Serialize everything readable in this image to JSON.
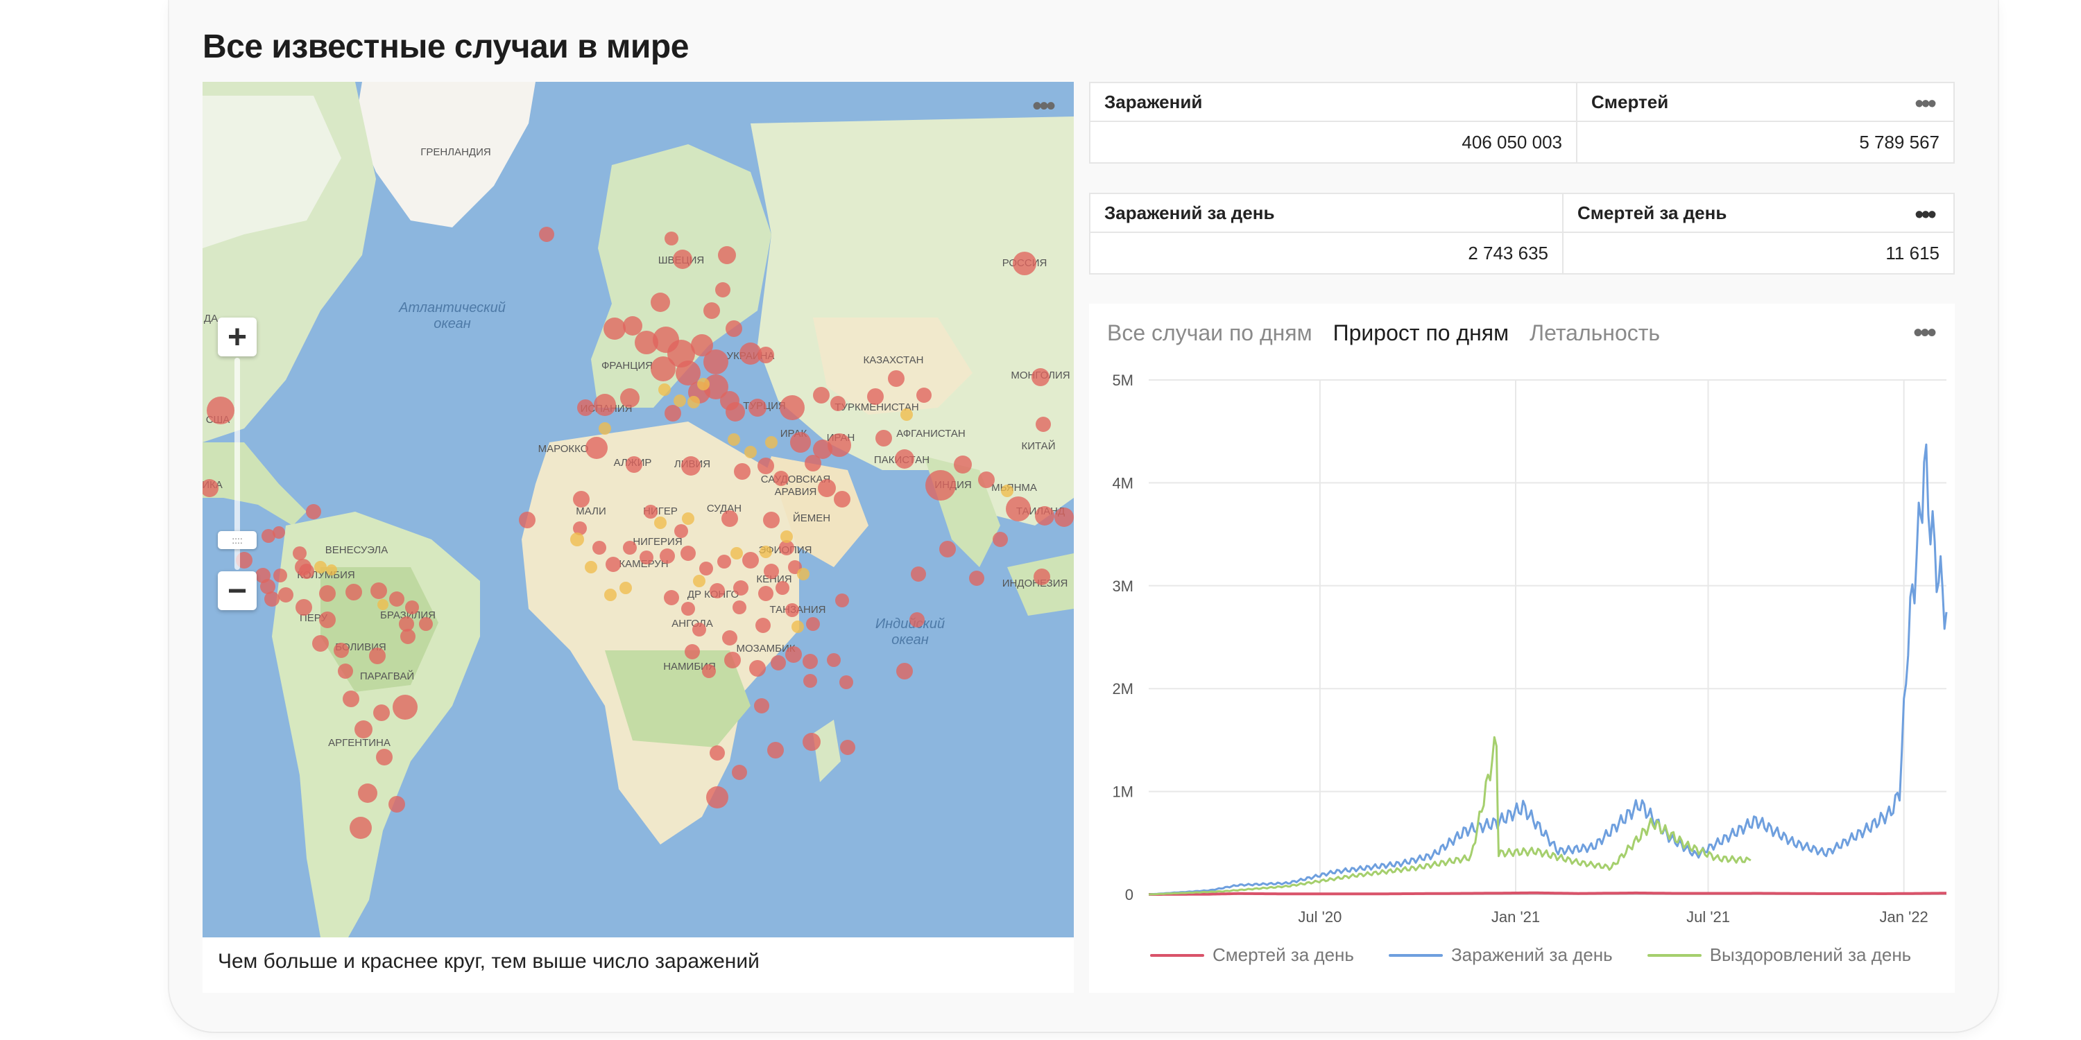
{
  "page": {
    "title": "Все известные случаи в мире"
  },
  "map": {
    "caption": "Чем больше и краснее круг, тем выше число заражений",
    "zoom_in": "+",
    "zoom_out": "−",
    "ocean_labels": [
      {
        "text": "Атлантический",
        "id": "atlantic-1"
      },
      {
        "text": "океан",
        "id": "atlantic-2"
      },
      {
        "text": "Индийский",
        "id": "indian-1"
      },
      {
        "text": "океан",
        "id": "indian-2"
      }
    ],
    "country_labels": [
      "ГРЕНЛАНДИЯ",
      "ШВЕЦИЯ",
      "РОССИЯ",
      "УКРАИНА",
      "ФРАНЦИЯ",
      "ИСПАНИЯ",
      "ТУРЦИЯ",
      "КАЗАХСТАН",
      "МОНГОЛИЯ",
      "ТУРКМЕНИСТАН",
      "АФГАНИСТАН",
      "КИТАЙ",
      "ИРАН",
      "ИРАК",
      "ПАКИСТАН",
      "ИНДИЯ",
      "МЬЯНМА",
      "ТАИЛАНД",
      "ИНДОНЕЗИЯ",
      "САУДОВСКАЯ",
      "АРАВИЯ",
      "ЙЕМЕН",
      "МАРОККО",
      "АЛЖИР",
      "ЛИВИЯ",
      "МАЛИ",
      "НИГЕР",
      "СУДАН",
      "ЭФИОПИЯ",
      "НИГЕРИЯ",
      "КАМЕРУН",
      "ДР КОНГО",
      "КЕНИЯ",
      "ТАНЗАНИЯ",
      "АНГОЛА",
      "МОЗАМБИК",
      "НАМИБИЯ",
      "ВЕНЕСУЭЛА",
      "КОЛУМБИЯ",
      "ПЕРУ",
      "БРАЗИЛИЯ",
      "БОЛИВИЯ",
      "ПАРАГВАЙ",
      "АРГЕНТИНА",
      "США",
      "ДА",
      "ИКА"
    ]
  },
  "kpi_total": {
    "headers": [
      "Заражений",
      "Смертей"
    ],
    "values": [
      "406 050 003",
      "5 789 567"
    ]
  },
  "kpi_daily": {
    "headers": [
      "Заражений за день",
      "Смертей за день"
    ],
    "values": [
      "2 743 635",
      "11 615"
    ]
  },
  "chart": {
    "tabs": [
      "Все случаи по дням",
      "Прирост по дням",
      "Летальность"
    ],
    "active_tab": 1,
    "legend": [
      {
        "label": "Смертей за день",
        "color": "#d9536a"
      },
      {
        "label": "Заражений за день",
        "color": "#6e9fde"
      },
      {
        "label": "Выздоровлений за день",
        "color": "#a5cf6d"
      }
    ]
  },
  "chart_data": {
    "type": "line",
    "title": "",
    "xlabel": "",
    "ylabel": "",
    "x_ticks": [
      "Jul '20",
      "Jan '21",
      "Jul '21",
      "Jan '22"
    ],
    "y_ticks": [
      "0",
      "1M",
      "2M",
      "3M",
      "4M",
      "5M"
    ],
    "ylim": [
      0,
      5000000
    ],
    "x_range": [
      "2020-01-22",
      "2022-02-10"
    ],
    "grid": true,
    "legend_position": "bottom",
    "series": [
      {
        "name": "Смертей за день",
        "color": "#d9536a",
        "points": [
          [
            "2020-01-22",
            0
          ],
          [
            "2020-03-15",
            1500
          ],
          [
            "2020-04-15",
            8000
          ],
          [
            "2020-06-01",
            5000
          ],
          [
            "2020-09-01",
            5500
          ],
          [
            "2020-12-01",
            11000
          ],
          [
            "2021-01-20",
            15000
          ],
          [
            "2021-03-01",
            9000
          ],
          [
            "2021-04-25",
            14000
          ],
          [
            "2021-06-01",
            10000
          ],
          [
            "2021-08-20",
            10500
          ],
          [
            "2021-10-15",
            7500
          ],
          [
            "2021-12-15",
            7000
          ],
          [
            "2022-02-10",
            11615
          ]
        ]
      },
      {
        "name": "Заражений за день",
        "color": "#6e9fde",
        "points": [
          [
            "2020-01-22",
            0
          ],
          [
            "2020-03-20",
            40000
          ],
          [
            "2020-04-15",
            90000
          ],
          [
            "2020-06-01",
            110000
          ],
          [
            "2020-07-15",
            220000
          ],
          [
            "2020-09-15",
            300000
          ],
          [
            "2020-10-15",
            380000
          ],
          [
            "2020-11-15",
            620000
          ],
          [
            "2020-12-15",
            700000
          ],
          [
            "2021-01-08",
            850000
          ],
          [
            "2021-02-10",
            420000
          ],
          [
            "2021-03-15",
            460000
          ],
          [
            "2021-04-28",
            880000
          ],
          [
            "2021-05-25",
            560000
          ],
          [
            "2021-06-20",
            380000
          ],
          [
            "2021-08-15",
            720000
          ],
          [
            "2021-09-20",
            500000
          ],
          [
            "2021-10-20",
            400000
          ],
          [
            "2021-11-25",
            620000
          ],
          [
            "2021-12-20",
            800000
          ],
          [
            "2021-12-28",
            1000000
          ],
          [
            "2022-01-05",
            2500000
          ],
          [
            "2022-01-15",
            3500000
          ],
          [
            "2022-01-20",
            4200000
          ],
          [
            "2022-01-30",
            3300000
          ],
          [
            "2022-02-10",
            2743635
          ]
        ]
      },
      {
        "name": "Выздоровлений за день",
        "color": "#a5cf6d",
        "points": [
          [
            "2020-01-22",
            0
          ],
          [
            "2020-04-01",
            30000
          ],
          [
            "2020-06-01",
            80000
          ],
          [
            "2020-08-01",
            180000
          ],
          [
            "2020-10-01",
            260000
          ],
          [
            "2020-11-20",
            360000
          ],
          [
            "2020-12-14",
            1500000
          ],
          [
            "2020-12-16",
            400000
          ],
          [
            "2021-01-20",
            420000
          ],
          [
            "2021-03-01",
            310000
          ],
          [
            "2021-04-01",
            260000
          ],
          [
            "2021-05-10",
            700000
          ],
          [
            "2021-06-10",
            480000
          ],
          [
            "2021-07-10",
            350000
          ],
          [
            "2021-08-10",
            330000
          ]
        ]
      }
    ]
  }
}
